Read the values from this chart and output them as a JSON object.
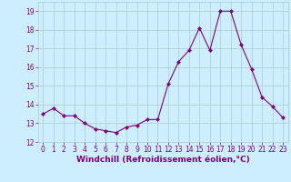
{
  "x": [
    0,
    1,
    2,
    3,
    4,
    5,
    6,
    7,
    8,
    9,
    10,
    11,
    12,
    13,
    14,
    15,
    16,
    17,
    18,
    19,
    20,
    21,
    22,
    23
  ],
  "y": [
    13.5,
    13.8,
    13.4,
    13.4,
    13.0,
    12.7,
    12.6,
    12.5,
    12.8,
    12.9,
    13.2,
    13.2,
    15.1,
    16.3,
    16.9,
    18.1,
    16.9,
    19.0,
    19.0,
    17.2,
    15.9,
    14.4,
    13.9,
    13.3
  ],
  "line_color": "#800080",
  "marker": "D",
  "marker_size": 2.2,
  "bg_color": "#cceeff",
  "grid_color": "#aacccc",
  "xlabel": "Windchill (Refroidissement éolien,°C)",
  "xlim": [
    -0.5,
    23.5
  ],
  "ylim": [
    12,
    19.5
  ],
  "yticks": [
    12,
    13,
    14,
    15,
    16,
    17,
    18,
    19
  ],
  "xticks": [
    0,
    1,
    2,
    3,
    4,
    5,
    6,
    7,
    8,
    9,
    10,
    11,
    12,
    13,
    14,
    15,
    16,
    17,
    18,
    19,
    20,
    21,
    22,
    23
  ],
  "tick_color": "#800080",
  "tick_fontsize": 5.5,
  "xlabel_fontsize": 6.5
}
